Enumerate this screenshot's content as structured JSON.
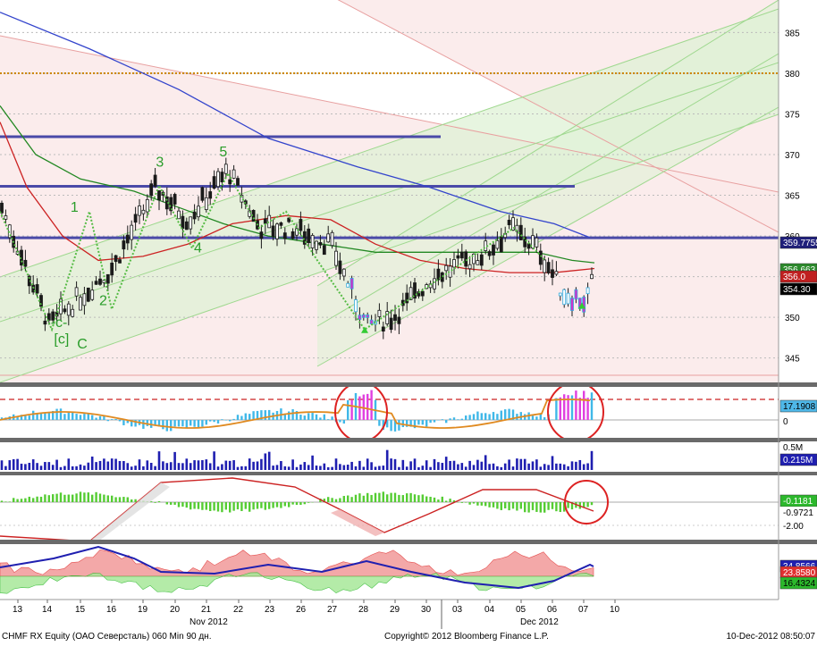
{
  "footer": {
    "left": "CHMF RX Equity (ОАО Северсталь) 060 Min 90 дн.",
    "middle": "Copyright© 2012 Bloomberg Finance L.P.",
    "right": "10-Dec-2012 08:50:07"
  },
  "colors": {
    "price_panel_bg": "#fbeaea",
    "channel_fill": "#dff1d6",
    "ma_blue": "#3344cc",
    "ma_green": "#228822",
    "ma_red": "#cc2222",
    "level_line": "#4a4aa8",
    "dotted_level": "#cc8800",
    "separator": "#555555"
  },
  "chart_data": [
    {
      "type": "candlestick",
      "panel": "price",
      "x_tick_labels": [
        "13",
        "14",
        "15",
        "16",
        "19",
        "20",
        "21",
        "22",
        "23",
        "26",
        "27",
        "28",
        "29",
        "30",
        "03",
        "04",
        "05",
        "06",
        "07",
        "10"
      ],
      "month_labels": [
        "Nov 2012",
        "Dec 2012"
      ],
      "y_ticks": [
        345,
        350,
        355,
        360,
        365,
        370,
        375,
        380,
        385
      ],
      "ylim": [
        342,
        389
      ],
      "horizontal_levels": [
        372.2,
        366.1,
        359.7755
      ],
      "dotted_level": 380.0,
      "badges": [
        {
          "text": "359.7755",
          "bg": "#1f1f7a",
          "fg": "#ffffff"
        },
        {
          "text": "356.663",
          "bg": "#2c8a2c",
          "fg": "#ffffff"
        },
        {
          "text": "356.0",
          "bg": "#c02020",
          "fg": "#ffffff"
        },
        {
          "text": "354.30",
          "bg": "#000000",
          "fg": "#ffffff"
        }
      ],
      "wave_labels": [
        {
          "text": "1",
          "x_day": "14.7",
          "y": 363.0
        },
        {
          "text": "2",
          "x_day": "15.6",
          "y": 351.5
        },
        {
          "text": "3",
          "x_day": "19.4",
          "y": 368.5
        },
        {
          "text": "4",
          "x_day": "20.6",
          "y": 358.0
        },
        {
          "text": "5",
          "x_day": "21.4",
          "y": 369.8
        },
        {
          "text": "-c-",
          "x_day": "14.1",
          "y": 348.8
        },
        {
          "text": "[c]",
          "x_day": "14.2",
          "y": 346.8
        },
        {
          "text": "C",
          "x_day": "14.9",
          "y": 346.2
        }
      ]
    },
    {
      "type": "histogram",
      "panel": "oscillator",
      "badges": [
        {
          "text": "17.1908",
          "bg": "#4fb8e8",
          "fg": "#000000"
        },
        {
          "text": "0",
          "bg": "#ffffff",
          "fg": "#000000"
        }
      ]
    },
    {
      "type": "bar",
      "panel": "volume",
      "badges": [
        {
          "text": "0.5M",
          "bg": "#ffffff",
          "fg": "#000000"
        },
        {
          "text": "0.215M",
          "bg": "#1f1fb0",
          "fg": "#ffffff"
        }
      ]
    },
    {
      "type": "histogram",
      "panel": "macd",
      "badges": [
        {
          "text": "-0.1181",
          "bg": "#2cb82c",
          "fg": "#ffffff"
        },
        {
          "text": "-0.9721",
          "bg": "#ffffff",
          "fg": "#000000"
        },
        {
          "text": "-2.00",
          "bg": "#ffffff",
          "fg": "#000000"
        }
      ]
    },
    {
      "type": "area",
      "panel": "dmi",
      "badges": [
        {
          "text": "34.8566",
          "bg": "#1f1fb0",
          "fg": "#ffffff"
        },
        {
          "text": "23.8580",
          "bg": "#e03030",
          "fg": "#ffffff"
        },
        {
          "text": "16.4324",
          "bg": "#2cb82c",
          "fg": "#000000"
        }
      ]
    }
  ]
}
